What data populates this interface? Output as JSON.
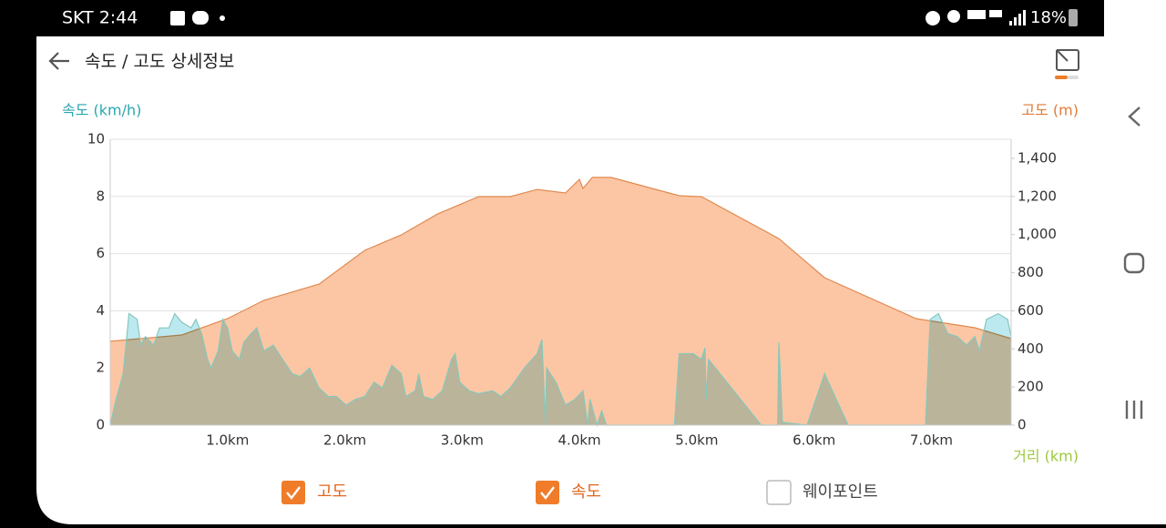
{
  "status_bar": {
    "carrier_time": "SKT 2:44",
    "battery": "18%"
  },
  "header": {
    "title": "속도 / 고도 상세정보"
  },
  "chart_data": {
    "type": "area",
    "y_label": "속도 (km/h)",
    "y2_label": "고도 (m)",
    "x_label": "거리 (km)",
    "xlim": [
      0,
      7.68
    ],
    "xticks": [
      {
        "value": 1,
        "label": "1.0km"
      },
      {
        "value": 2,
        "label": "2.0km"
      },
      {
        "value": 3,
        "label": "3.0km"
      },
      {
        "value": 4,
        "label": "4.0km"
      },
      {
        "value": 5,
        "label": "5.0km"
      },
      {
        "value": 6,
        "label": "6.0km"
      },
      {
        "value": 7,
        "label": "7.0km"
      }
    ],
    "ylim": [
      0,
      10
    ],
    "yticks": [
      0,
      2,
      4,
      6,
      8,
      10
    ],
    "y2lim": [
      0,
      1500
    ],
    "y2ticks": [
      0,
      200,
      400,
      600,
      800,
      {
        "value": 1000,
        "label": "1,000"
      },
      {
        "value": 1200,
        "label": "1,200"
      },
      {
        "value": 1400,
        "label": "1,400"
      }
    ],
    "grid": true,
    "series": [
      {
        "name": "고도",
        "axis": "y2",
        "color": "#e08a50",
        "fill": "#fcc6a4",
        "x": [
          0,
          0.61,
          1.0,
          1.31,
          1.78,
          2.17,
          2.48,
          2.79,
          3.14,
          3.41,
          3.64,
          3.88,
          4.0,
          4.03,
          4.11,
          4.27,
          4.85,
          5.04,
          5.7,
          6.09,
          6.87,
          7.37,
          7.68
        ],
        "values": [
          440,
          473,
          559,
          655,
          740,
          917,
          998,
          1108,
          1199,
          1199,
          1237,
          1218,
          1290,
          1242,
          1300,
          1300,
          1204,
          1199,
          979,
          774,
          559,
          511,
          454
        ]
      },
      {
        "name": "속도",
        "color": "#86c8bc",
        "fill": "#bce8f0",
        "x": [
          0,
          0.05,
          0.11,
          0.16,
          0.23,
          0.26,
          0.3,
          0.37,
          0.42,
          0.5,
          0.55,
          0.61,
          0.69,
          0.73,
          0.78,
          0.83,
          0.86,
          0.92,
          0.96,
          1.0,
          1.04,
          1.1,
          1.14,
          1.2,
          1.25,
          1.31,
          1.39,
          1.47,
          1.55,
          1.62,
          1.7,
          1.78,
          1.86,
          1.93,
          2.01,
          2.09,
          2.17,
          2.25,
          2.32,
          2.4,
          2.48,
          2.52,
          2.6,
          2.63,
          2.67,
          2.75,
          2.83,
          2.91,
          2.94,
          2.98,
          3.06,
          3.14,
          3.26,
          3.33,
          3.41,
          3.53,
          3.64,
          3.68,
          3.71,
          3.72,
          3.8,
          3.88,
          3.96,
          4.03,
          4.07,
          4.09,
          4.15,
          4.19,
          4.23,
          4.81,
          4.85,
          4.97,
          5.04,
          5.07,
          5.08,
          5.1,
          5.55,
          5.69,
          5.7,
          5.73,
          5.94,
          6.09,
          6.29,
          6.95,
          6.99,
          7.06,
          7.14,
          7.22,
          7.3,
          7.37,
          7.41,
          7.47,
          7.57,
          7.65,
          7.68
        ],
        "values": [
          0,
          0.9,
          1.8,
          3.9,
          3.7,
          2.8,
          3.1,
          2.8,
          3.4,
          3.4,
          3.9,
          3.6,
          3.4,
          3.7,
          3.2,
          2.3,
          2.0,
          2.6,
          3.7,
          3.4,
          2.6,
          2.3,
          2.9,
          3.2,
          3.4,
          2.6,
          2.8,
          2.3,
          1.8,
          1.7,
          2.0,
          1.3,
          1.0,
          1.0,
          0.7,
          0.9,
          1.0,
          1.5,
          1.3,
          2.1,
          1.8,
          1.0,
          1.2,
          1.8,
          1.0,
          0.9,
          1.2,
          2.3,
          2.5,
          1.5,
          1.2,
          1.1,
          1.2,
          1.0,
          1.3,
          2.0,
          2.5,
          3.0,
          0,
          2.0,
          1.5,
          0.7,
          0.9,
          1.2,
          0,
          0.9,
          0,
          0.5,
          0,
          0,
          2.5,
          2.5,
          2.3,
          2.7,
          0.9,
          2.3,
          0,
          0,
          2.9,
          0.1,
          0,
          1.8,
          0,
          0,
          3.7,
          3.9,
          3.2,
          3.1,
          2.8,
          3.1,
          2.6,
          3.7,
          3.9,
          3.7,
          3.1
        ]
      }
    ]
  },
  "controls": {
    "waypoint": "웨이포인트"
  }
}
